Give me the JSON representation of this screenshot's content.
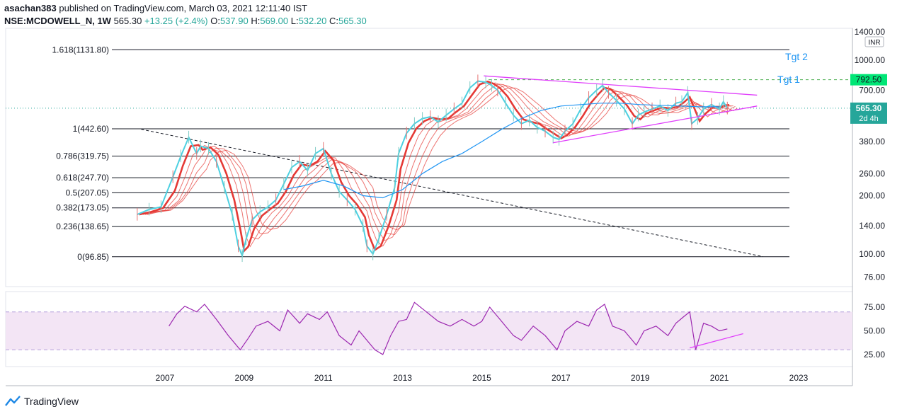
{
  "header": {
    "author": "asachan383",
    "published_text": "published on TradingView.com, March 03, 2021 12:11:40 IST",
    "symbol": "NSE:MCDOWELL_N, 1W",
    "last": "565.30",
    "change": "+13.25 (+2.4%)",
    "o_label": "O:",
    "o": "537.90",
    "h_label": "H:",
    "h": "569.00",
    "l_label": "L:",
    "l": "532.20",
    "c_label": "C:",
    "c": "565.30"
  },
  "brand": {
    "name": "TradingView"
  },
  "chart_data": {
    "type": "line",
    "price_panel": {
      "scale": "log",
      "currency": "INR",
      "price_axis_ticks": [
        "1400.00",
        "1000.00",
        "700.00",
        "380.00",
        "260.00",
        "200.00",
        "140.00",
        "100.00",
        "76.00"
      ],
      "price_tick_values": [
        1400,
        1000,
        700,
        380,
        260,
        200,
        140,
        100,
        76
      ],
      "last_price_label": "565.30",
      "last_price_sub": "2d 4h",
      "target_price_label": "792.50",
      "fib_levels": [
        {
          "label": "1.618(1131.80)",
          "value": 1131.8
        },
        {
          "label": "1(442.60)",
          "value": 442.6
        },
        {
          "label": "0.786(319.75)",
          "value": 319.75
        },
        {
          "label": "0.618(247.70)",
          "value": 247.7
        },
        {
          "label": "0.5(207.05)",
          "value": 207.05
        },
        {
          "label": "0.382(173.05)",
          "value": 173.05
        },
        {
          "label": "0.236(138.65)",
          "value": 138.65
        },
        {
          "label": "0(96.85)",
          "value": 96.85
        }
      ],
      "annotations": [
        "Tgt 2",
        "Tgt 1"
      ],
      "target_1": 792.5,
      "price_series": {
        "x": [
          2006.3,
          2006.6,
          2006.9,
          2007.2,
          2007.4,
          2007.6,
          2007.8,
          2007.9,
          2008.1,
          2008.3,
          2008.5,
          2008.7,
          2008.85,
          2008.95,
          2009.05,
          2009.2,
          2009.4,
          2009.6,
          2009.8,
          2010.0,
          2010.2,
          2010.4,
          2010.6,
          2010.8,
          2011.0,
          2011.2,
          2011.4,
          2011.6,
          2011.8,
          2012.0,
          2012.1,
          2012.25,
          2012.4,
          2012.6,
          2012.8,
          2012.9,
          2013.1,
          2013.3,
          2013.5,
          2013.7,
          2013.9,
          2014.1,
          2014.3,
          2014.5,
          2014.7,
          2014.9,
          2015.1,
          2015.25,
          2015.4,
          2015.6,
          2015.8,
          2016.0,
          2016.2,
          2016.4,
          2016.6,
          2016.8,
          2016.95,
          2017.1,
          2017.3,
          2017.5,
          2017.7,
          2017.9,
          2018.05,
          2018.2,
          2018.4,
          2018.6,
          2018.8,
          2018.95,
          2019.1,
          2019.3,
          2019.5,
          2019.7,
          2019.9,
          2020.05,
          2020.2,
          2020.3,
          2020.45,
          2020.6,
          2020.8,
          2021.0,
          2021.1,
          2021.2
        ],
        "y": [
          160,
          170,
          175,
          250,
          320,
          400,
          330,
          360,
          350,
          300,
          220,
          160,
          110,
          98,
          120,
          150,
          165,
          175,
          190,
          230,
          280,
          300,
          270,
          330,
          350,
          260,
          210,
          190,
          170,
          140,
          110,
          100,
          120,
          160,
          220,
          330,
          420,
          470,
          500,
          510,
          480,
          520,
          560,
          600,
          720,
          780,
          770,
          740,
          700,
          600,
          520,
          470,
          490,
          450,
          430,
          400,
          390,
          430,
          470,
          560,
          640,
          700,
          740,
          680,
          620,
          560,
          470,
          520,
          540,
          560,
          580,
          550,
          600,
          610,
          680,
          470,
          500,
          560,
          590,
          560,
          610,
          565
        ]
      },
      "sma200": {
        "x": [
          2010.0,
          2010.5,
          2011.0,
          2011.5,
          2012.0,
          2012.5,
          2013.0,
          2013.5,
          2014.0,
          2014.5,
          2015.0,
          2015.5,
          2016.0,
          2016.5,
          2017.0,
          2017.5,
          2018.0,
          2018.5,
          2019.0,
          2019.5,
          2020.0,
          2020.5,
          2021.0
        ],
        "y": [
          215,
          225,
          240,
          225,
          200,
          195,
          215,
          260,
          300,
          330,
          380,
          440,
          500,
          550,
          580,
          590,
          600,
          600,
          590,
          585,
          580,
          575,
          575
        ]
      },
      "trendlines": [
        {
          "name": "upper",
          "x": [
            2015.05,
            2021.95
          ],
          "y": [
            830,
            660
          ]
        },
        {
          "name": "lower",
          "x": [
            2016.8,
            2021.95
          ],
          "y": [
            375,
            580
          ]
        },
        {
          "name": "long-term-downtrend",
          "x": [
            2006.4,
            2022.1
          ],
          "y": [
            440,
            97
          ]
        }
      ]
    },
    "rsi_panel": {
      "ticks": [
        "75.00",
        "50.00",
        "25.00"
      ],
      "tick_values": [
        75,
        50,
        25
      ],
      "band": [
        30,
        70
      ],
      "x": [
        2007.1,
        2007.3,
        2007.5,
        2007.8,
        2008.0,
        2008.3,
        2008.6,
        2008.9,
        2009.1,
        2009.3,
        2009.6,
        2009.9,
        2010.1,
        2010.4,
        2010.6,
        2010.9,
        2011.1,
        2011.4,
        2011.7,
        2011.9,
        2012.1,
        2012.3,
        2012.5,
        2012.7,
        2012.9,
        2013.1,
        2013.3,
        2013.6,
        2013.9,
        2014.2,
        2014.5,
        2014.8,
        2015.0,
        2015.2,
        2015.5,
        2015.8,
        2016.0,
        2016.3,
        2016.6,
        2016.9,
        2017.1,
        2017.4,
        2017.7,
        2017.9,
        2018.1,
        2018.3,
        2018.6,
        2018.9,
        2019.1,
        2019.4,
        2019.7,
        2019.9,
        2020.1,
        2020.25,
        2020.4,
        2020.6,
        2020.8,
        2021.0,
        2021.2
      ],
      "y": [
        55,
        68,
        76,
        70,
        78,
        62,
        45,
        30,
        42,
        55,
        60,
        50,
        72,
        58,
        68,
        62,
        70,
        45,
        35,
        50,
        40,
        30,
        25,
        45,
        60,
        62,
        80,
        70,
        60,
        55,
        62,
        55,
        60,
        75,
        60,
        45,
        40,
        55,
        45,
        30,
        50,
        60,
        55,
        72,
        78,
        55,
        50,
        35,
        50,
        55,
        45,
        58,
        65,
        70,
        30,
        58,
        55,
        50,
        52
      ],
      "trendline": {
        "x": [
          2020.25,
          2021.6
        ],
        "y": [
          32,
          47
        ]
      }
    },
    "x_axis_ticks": [
      "2007",
      "2009",
      "2011",
      "2013",
      "2015",
      "2017",
      "2019",
      "2021",
      "2023"
    ],
    "x_tick_values": [
      2007,
      2009,
      2011,
      2013,
      2015,
      2017,
      2019,
      2021,
      2023
    ]
  },
  "colors": {
    "up": "#26a69a",
    "candle_up": "#4dd0e1",
    "ribbon": "#e53935",
    "sma": "#2196f3",
    "trendline": "#e040fb",
    "target_line": "#4caf50",
    "target_label_bg": "#00e676",
    "rsi_line": "#9c27b0",
    "rsi_band": "#f3e5f5",
    "last_label_bg": "#26a69a",
    "tgt_text": "#2196f3"
  }
}
